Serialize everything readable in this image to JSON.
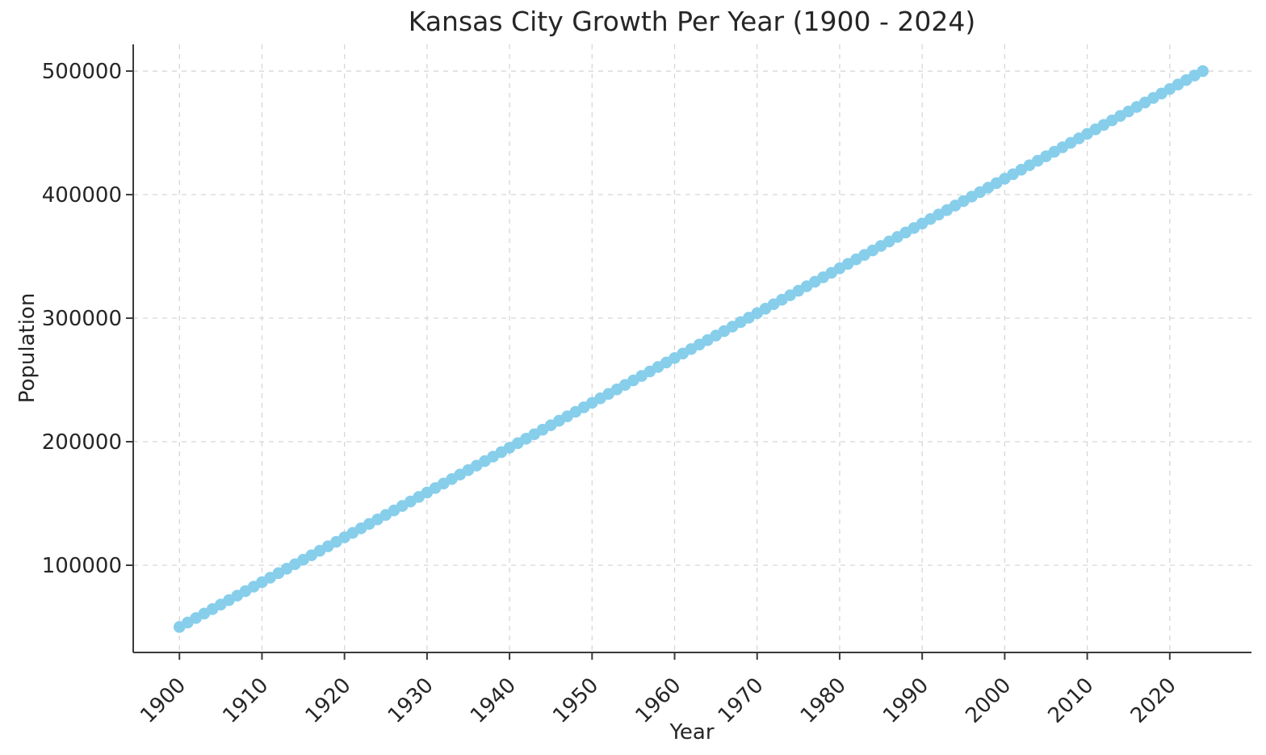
{
  "figure": {
    "background_color": "#ffffff"
  },
  "chart_data": {
    "type": "scatter",
    "title": "Kansas City Growth Per Year (1900 - 2024)",
    "xlabel": "Year",
    "ylabel": "Population",
    "legend": "none",
    "grid": true,
    "grid_style": "dashed",
    "xlim": [
      1894.4,
      2029.9
    ],
    "ylim": [
      29400,
      521600
    ],
    "x_ticks": [
      1900,
      1910,
      1920,
      1930,
      1940,
      1950,
      1960,
      1970,
      1980,
      1990,
      2000,
      2010,
      2020
    ],
    "y_ticks": [
      100000,
      200000,
      300000,
      400000,
      500000
    ],
    "x_tick_rotation_deg": 45,
    "marker_color": "#87CEEB",
    "marker_radius_px": 7.3,
    "grid_color": "#d7d7d7",
    "spine_color": "#3a3a3a",
    "text_color": "#262626",
    "x": [
      1900,
      1901,
      1902,
      1903,
      1904,
      1905,
      1906,
      1907,
      1908,
      1909,
      1910,
      1911,
      1912,
      1913,
      1914,
      1915,
      1916,
      1917,
      1918,
      1919,
      1920,
      1921,
      1922,
      1923,
      1924,
      1925,
      1926,
      1927,
      1928,
      1929,
      1930,
      1931,
      1932,
      1933,
      1934,
      1935,
      1936,
      1937,
      1938,
      1939,
      1940,
      1941,
      1942,
      1943,
      1944,
      1945,
      1946,
      1947,
      1948,
      1949,
      1950,
      1951,
      1952,
      1953,
      1954,
      1955,
      1956,
      1957,
      1958,
      1959,
      1960,
      1961,
      1962,
      1963,
      1964,
      1965,
      1966,
      1967,
      1968,
      1969,
      1970,
      1971,
      1972,
      1973,
      1974,
      1975,
      1976,
      1977,
      1978,
      1979,
      1980,
      1981,
      1982,
      1983,
      1984,
      1985,
      1986,
      1987,
      1988,
      1989,
      1990,
      1991,
      1992,
      1993,
      1994,
      1995,
      1996,
      1997,
      1998,
      1999,
      2000,
      2001,
      2002,
      2003,
      2004,
      2005,
      2006,
      2007,
      2008,
      2009,
      2010,
      2011,
      2012,
      2013,
      2014,
      2015,
      2016,
      2017,
      2018,
      2019,
      2020,
      2021,
      2022,
      2023,
      2024
    ],
    "y": [
      50000,
      53629,
      57258,
      60887,
      64516,
      68145,
      71774,
      75403,
      79032,
      82661,
      86290,
      89919,
      93548,
      97177,
      100806,
      104435,
      108065,
      111694,
      115323,
      118952,
      122581,
      126210,
      129839,
      133468,
      137097,
      140726,
      144355,
      147984,
      151613,
      155242,
      158871,
      162500,
      166129,
      169758,
      173387,
      177016,
      180645,
      184274,
      187903,
      191532,
      195161,
      198790,
      202419,
      206048,
      209677,
      213306,
      216935,
      220565,
      224194,
      227823,
      231452,
      235081,
      238710,
      242339,
      245968,
      249597,
      253226,
      256855,
      260484,
      264113,
      267742,
      271371,
      275000,
      278629,
      282258,
      285887,
      289516,
      293145,
      296774,
      300403,
      304032,
      307661,
      311290,
      314919,
      318548,
      322177,
      325806,
      329435,
      333065,
      336694,
      340323,
      343952,
      347581,
      351210,
      354839,
      358468,
      362097,
      365726,
      369355,
      372984,
      376613,
      380242,
      383871,
      387500,
      391129,
      394758,
      398387,
      402016,
      405645,
      409274,
      412903,
      416532,
      420161,
      423790,
      427419,
      431048,
      434677,
      438306,
      441935,
      445565,
      449194,
      452823,
      456452,
      460081,
      463710,
      467339,
      470968,
      474597,
      478226,
      481855,
      485484,
      489113,
      492742,
      496371,
      500000
    ]
  }
}
